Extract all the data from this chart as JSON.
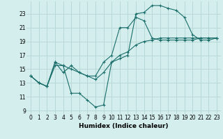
{
  "xlabel": "Humidex (Indice chaleur)",
  "background_color": "#d4eeee",
  "grid_color": "#b8d8d8",
  "line_color": "#1a6e6a",
  "xlim": [
    -0.5,
    23.5
  ],
  "ylim": [
    8.5,
    24.8
  ],
  "yticks": [
    9,
    11,
    13,
    15,
    17,
    19,
    21,
    23
  ],
  "xticks": [
    0,
    1,
    2,
    3,
    4,
    5,
    6,
    7,
    8,
    9,
    10,
    11,
    12,
    13,
    14,
    15,
    16,
    17,
    18,
    19,
    20,
    21,
    22,
    23
  ],
  "line1_x": [
    0,
    1,
    2,
    3,
    4,
    5,
    6,
    7,
    8,
    9,
    10,
    11,
    12,
    13,
    14,
    15,
    16,
    17,
    18,
    19,
    20,
    21,
    22,
    23
  ],
  "line1_y": [
    14.0,
    13.0,
    12.5,
    16.0,
    15.5,
    11.5,
    11.5,
    10.5,
    9.5,
    9.8,
    16.0,
    16.5,
    17.0,
    23.0,
    23.2,
    24.2,
    24.2,
    23.8,
    23.5,
    22.5,
    20.0,
    19.2,
    19.2,
    19.5
  ],
  "line2_x": [
    0,
    1,
    2,
    3,
    4,
    5,
    6,
    7,
    8,
    9,
    10,
    11,
    12,
    13,
    14,
    15,
    16,
    17,
    18,
    19,
    20,
    21,
    22,
    23
  ],
  "line2_y": [
    14.0,
    13.0,
    12.5,
    16.0,
    14.5,
    15.5,
    14.5,
    14.0,
    14.0,
    16.0,
    17.0,
    21.0,
    21.0,
    22.5,
    22.0,
    19.5,
    19.2,
    19.2,
    19.2,
    19.2,
    19.2,
    19.5,
    19.5,
    19.5
  ],
  "line3_x": [
    0,
    1,
    2,
    3,
    4,
    5,
    6,
    7,
    8,
    9,
    10,
    11,
    12,
    13,
    14,
    15,
    16,
    17,
    18,
    19,
    20,
    21,
    22,
    23
  ],
  "line3_y": [
    14.0,
    13.0,
    12.5,
    15.5,
    15.5,
    15.0,
    14.5,
    14.0,
    13.5,
    14.5,
    16.0,
    17.0,
    17.5,
    18.5,
    19.0,
    19.2,
    19.5,
    19.5,
    19.5,
    19.5,
    19.5,
    19.5,
    19.5,
    19.5
  ]
}
